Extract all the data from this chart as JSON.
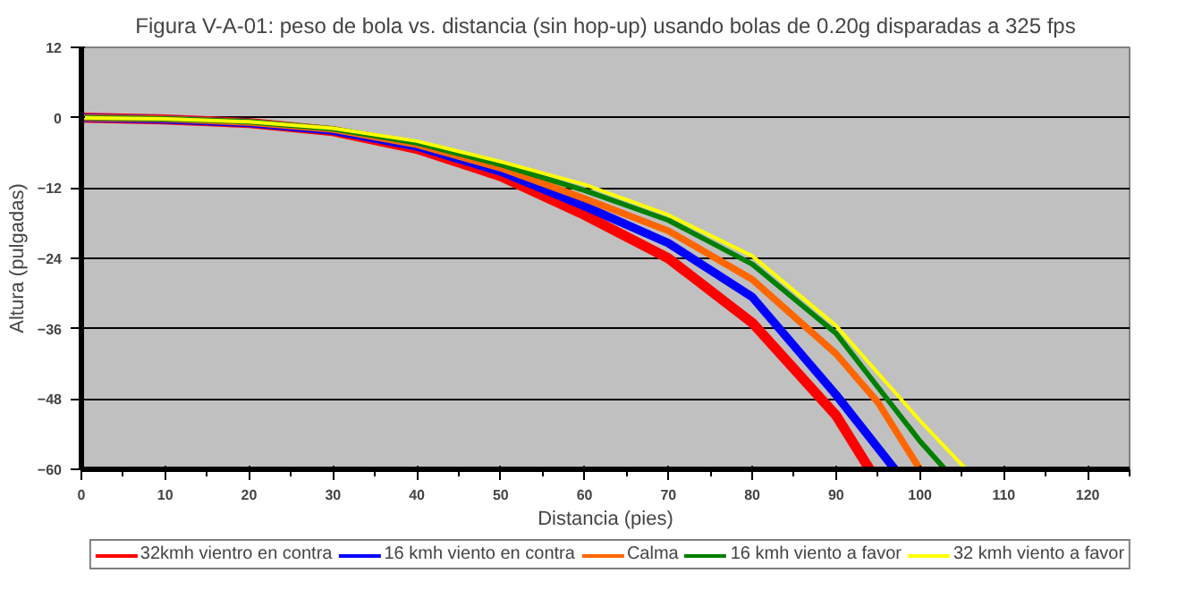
{
  "chart_data": {
    "type": "line",
    "title": "Figura V-A-01: peso de bola vs. distancia (sin hop-up) usando bolas de 0.20g disparadas a 325 fps",
    "xlabel": "Distancia (pies)",
    "ylabel": "Altura (pulgadas)",
    "xlim": [
      0,
      125
    ],
    "ylim": [
      -60,
      12
    ],
    "xticks": [
      0,
      10,
      20,
      30,
      40,
      50,
      60,
      70,
      80,
      90,
      100,
      110,
      120
    ],
    "yticks": [
      -60,
      -48,
      -36,
      -24,
      -12,
      0,
      12
    ],
    "grid": "y",
    "legend": "bottom",
    "marker": "none",
    "line_style": "solid",
    "series": [
      {
        "name": "32kmh vientro en contra",
        "color": "#ff0000",
        "x": [
          0,
          10,
          20,
          30,
          40,
          50,
          60,
          70,
          80,
          90,
          94
        ],
        "values": [
          0,
          -0.3,
          -0.9,
          -2.3,
          -5.3,
          -10,
          -16.6,
          -24,
          -35,
          -50.8,
          -60
        ]
      },
      {
        "name": "16 kmh viento en contra",
        "color": "#0000ff",
        "x": [
          0,
          10,
          20,
          30,
          40,
          50,
          60,
          70,
          80,
          90,
          97
        ],
        "values": [
          0,
          -0.3,
          -0.9,
          -2.2,
          -4.9,
          -9.2,
          -15.1,
          -21.4,
          -30.6,
          -47.3,
          -60
        ]
      },
      {
        "name": "Calma",
        "color": "#ff6600",
        "x": [
          0,
          10,
          20,
          30,
          40,
          50,
          60,
          70,
          80,
          90,
          95,
          100
        ],
        "values": [
          0,
          -0.2,
          -0.8,
          -2,
          -4.6,
          -8.6,
          -13.8,
          -19.3,
          -27.6,
          -40.3,
          -48.6,
          -60
        ]
      },
      {
        "name": "16 kmh viento a favor",
        "color": "#008000",
        "x": [
          0,
          10,
          20,
          30,
          40,
          50,
          60,
          70,
          80,
          90,
          100,
          103
        ],
        "values": [
          0,
          -0.2,
          -0.7,
          -1.9,
          -4.3,
          -8,
          -12.4,
          -17.5,
          -25,
          -36.8,
          -55.2,
          -60
        ]
      },
      {
        "name": "32 kmh viento a favor",
        "color": "#ffff00",
        "x": [
          0,
          10,
          20,
          30,
          40,
          50,
          60,
          70,
          80,
          90,
          100,
          105.5
        ],
        "values": [
          0,
          -0.2,
          -0.7,
          -1.8,
          -4,
          -7.5,
          -11.4,
          -16.6,
          -23.6,
          -35.5,
          -51.7,
          -60
        ]
      }
    ]
  }
}
